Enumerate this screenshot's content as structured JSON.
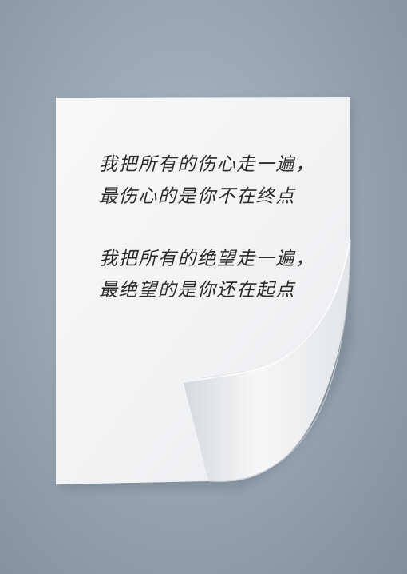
{
  "poem": {
    "stanza1": {
      "line1": "我把所有的伤心走一遍，",
      "line2": "最伤心的是你不在终点"
    },
    "stanza2": {
      "line1": "我把所有的绝望走一遍，",
      "line2": "最绝望的是你还在起点"
    }
  },
  "colors": {
    "background": "#98a7b3",
    "paper": "#f4f5f7",
    "ink": "#2a2a2a"
  }
}
